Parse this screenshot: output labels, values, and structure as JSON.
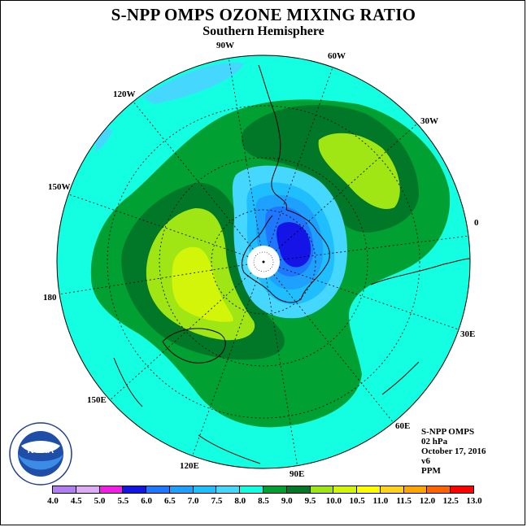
{
  "title": "S-NPP OMPS OZONE MIXING RATIO",
  "subtitle": "Southern Hemisphere",
  "longitude_labels": [
    "90W",
    "60W",
    "30W",
    "0",
    "30E",
    "60E",
    "90E",
    "120E",
    "150E",
    "180",
    "150W",
    "120W"
  ],
  "info": {
    "instrument": "S-NPP OMPS",
    "level": "02 hPa",
    "date": "October 17, 2016",
    "version": "v6",
    "units": "PPM"
  },
  "logo": {
    "text": "NOAA",
    "ring_text": "NATIONAL OCEANIC AND ATMOSPHERIC ADMINISTRATION · U.S. DEPARTMENT OF COMMERCE"
  },
  "colorbar": {
    "labels": [
      "4.0",
      "4.5",
      "5.0",
      "5.5",
      "6.0",
      "6.5",
      "7.0",
      "7.5",
      "8.0",
      "8.5",
      "9.0",
      "9.5",
      "10.0",
      "10.5",
      "11.0",
      "11.5",
      "12.0",
      "12.5",
      "13.0"
    ],
    "colors": [
      "#b27ff2",
      "#dcadf5",
      "#f21ee6",
      "#1414e6",
      "#1e78ff",
      "#1ea0ff",
      "#1ebeff",
      "#46d7ff",
      "#14ffe1",
      "#00a032",
      "#007828",
      "#a0e614",
      "#d2f50a",
      "#ffff00",
      "#ffd21e",
      "#ffa500",
      "#ff6400",
      "#ff0000",
      "#a0643c"
    ]
  }
}
